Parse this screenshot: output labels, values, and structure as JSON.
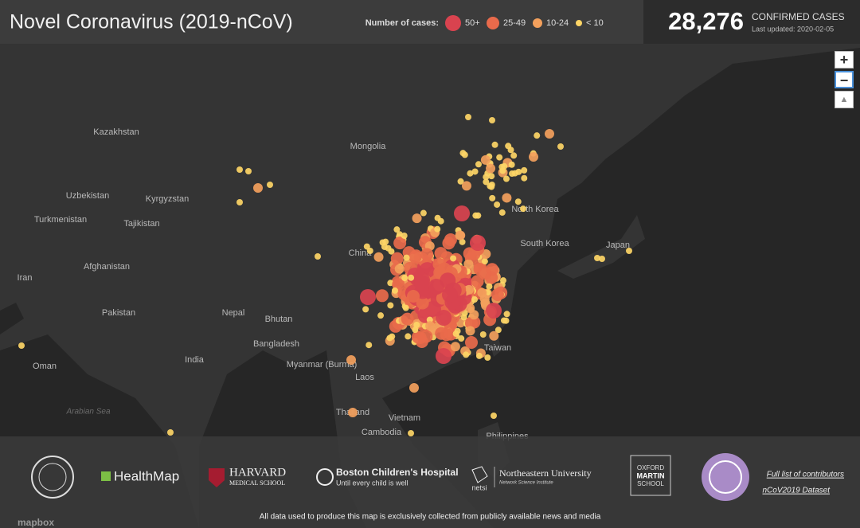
{
  "header": {
    "title": "Novel Coronavirus (2019-nCoV)",
    "legend": {
      "title": "Number of cases:",
      "items": [
        {
          "label": "50+",
          "color": "#d9434f"
        },
        {
          "label": "25-49",
          "color": "#e96a4b"
        },
        {
          "label": "10-24",
          "color": "#f3a05c"
        },
        {
          "label": "< 10",
          "color": "#fdd566"
        }
      ]
    },
    "case_count": "28,276",
    "count_caption": "CONFIRMED CASES",
    "last_updated": "Last updated: 2020-02-05"
  },
  "map_labels": [
    "Kazakhstan",
    "Mongolia",
    "Uzbekistan",
    "Kyrgyzstan",
    "Turkmenistan",
    "Tajikistan",
    "Afghanistan",
    "Iran",
    "Pakistan",
    "Nepal",
    "Bhutan",
    "India",
    "Bangladesh",
    "Myanmar (Burma)",
    "Laos",
    "Thailand",
    "Vietnam",
    "Cambodia",
    "Philippines",
    "North Korea",
    "South Korea",
    "Japan",
    "China",
    "Taiwan",
    "Oman",
    "Arabian Sea"
  ],
  "controls": [
    "+",
    "−"
  ],
  "footer": {
    "logos": [
      "HealthMap",
      "HARVARD",
      "MEDICAL SCHOOL",
      "Boston Children's Hospital",
      "Until every child is well",
      "netsi",
      "Northeastern University",
      "Network Science Institute",
      "OXFORD",
      "MARTIN",
      "SCHOOL"
    ],
    "links": [
      "Full list of contributors",
      "nCoV2019 Dataset"
    ],
    "disclaimer": "All data used to produce this map is exclusively collected from publicly available news and media",
    "attribution": "mapbox"
  }
}
